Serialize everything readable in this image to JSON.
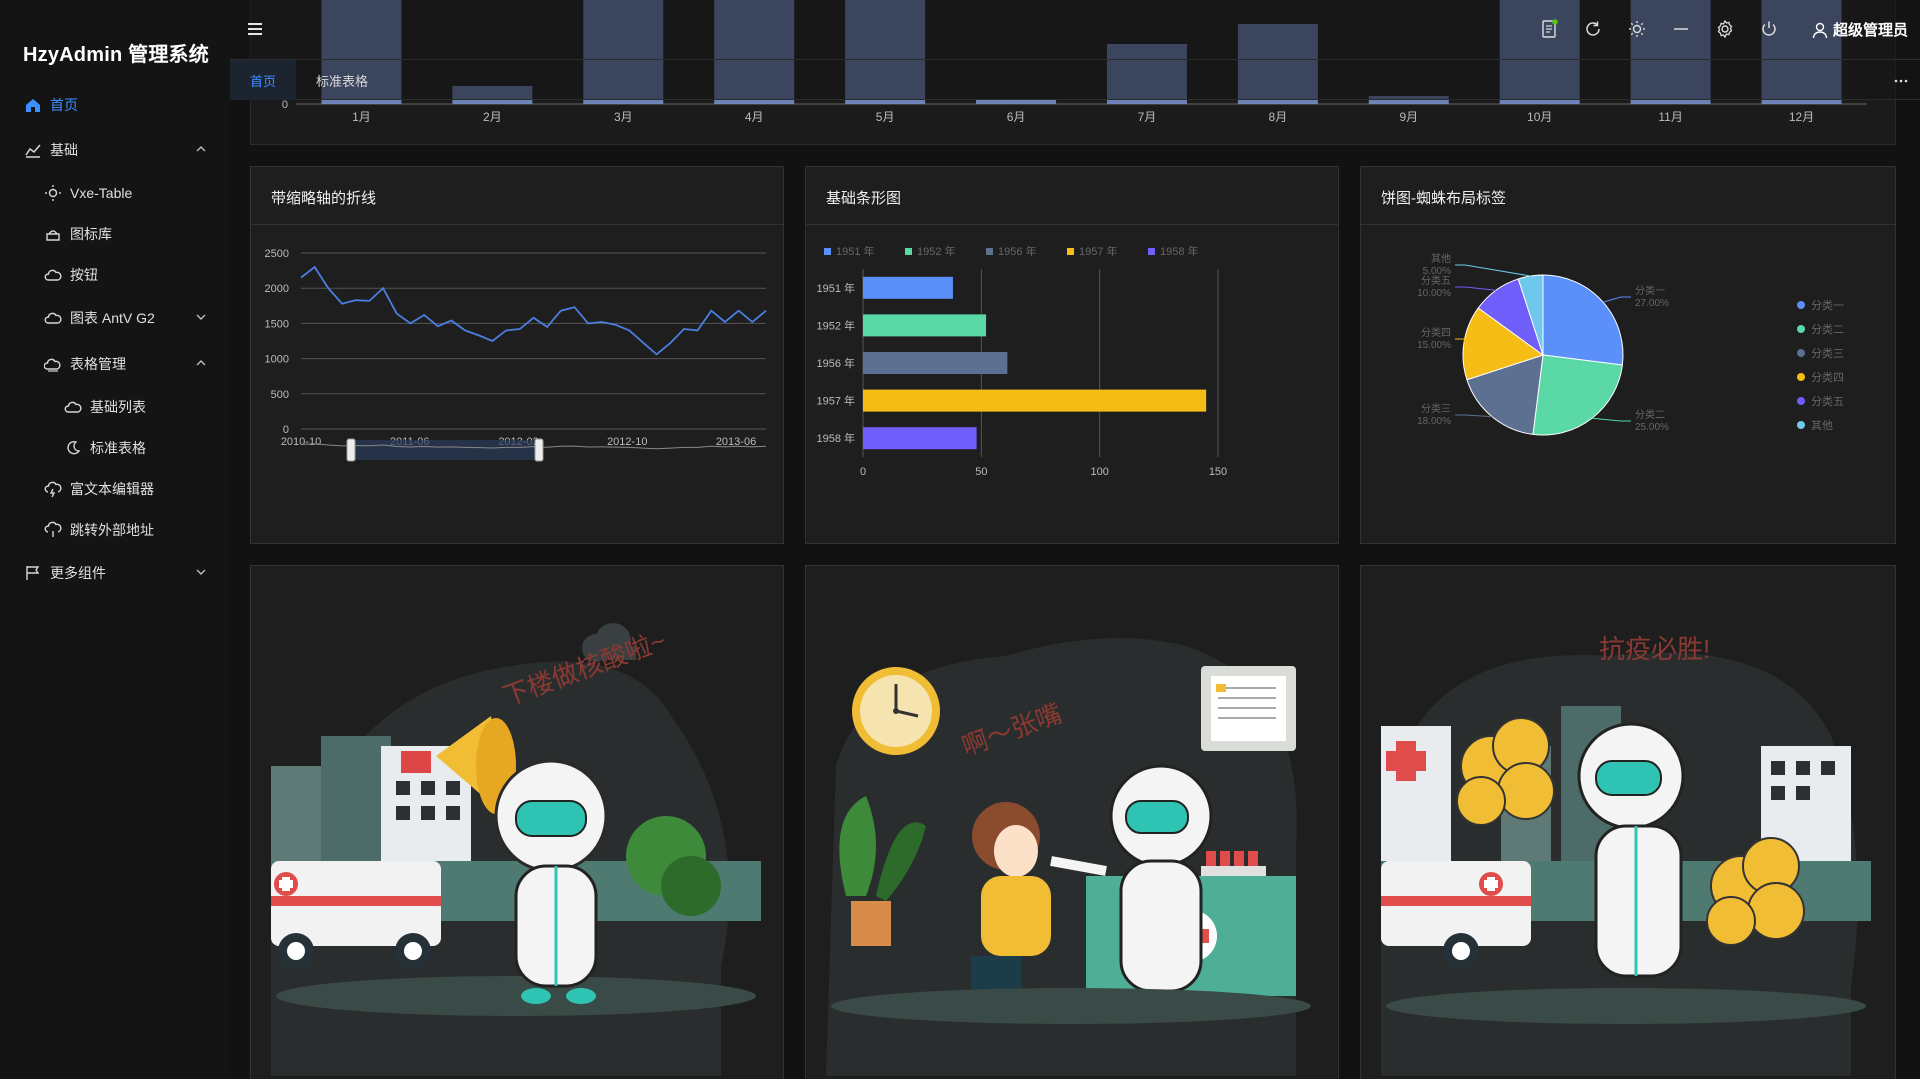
{
  "app": {
    "title": "HzyAdmin 管理系统"
  },
  "sidebar": {
    "items": [
      {
        "label": "首页",
        "icon": "home-icon",
        "active": true
      },
      {
        "label": "基础",
        "icon": "chart-line-icon",
        "expanded": true
      },
      {
        "label": "Vxe-Table",
        "icon": "sun-icon"
      },
      {
        "label": "图标库",
        "icon": "box-icon"
      },
      {
        "label": "按钮",
        "icon": "cloud-icon"
      },
      {
        "label": "图表 AntV G2",
        "icon": "cloud-icon",
        "expanded": false
      },
      {
        "label": "表格管理",
        "icon": "cloud-sun-icon",
        "expanded": true
      },
      {
        "label": "基础列表",
        "icon": "cloud-icon"
      },
      {
        "label": "标准表格",
        "icon": "moon-icon"
      },
      {
        "label": "富文本编辑器",
        "icon": "cloud-lightning-icon"
      },
      {
        "label": "跳转外部地址",
        "icon": "cloud-drizzle-icon"
      },
      {
        "label": "更多组件",
        "icon": "flag-icon",
        "expanded": false
      }
    ]
  },
  "header": {
    "user_name": "超级管理员",
    "icons": [
      "document-icon",
      "refresh-icon",
      "theme-sun-icon",
      "minimize-icon",
      "settings-icon",
      "power-icon",
      "user-icon"
    ]
  },
  "tabs": [
    {
      "label": "首页",
      "active": true
    },
    {
      "label": "标准表格",
      "active": false
    }
  ],
  "top_chart": {
    "chart_data": {
      "type": "bar",
      "categories": [
        "1月",
        "2月",
        "3月",
        "4月",
        "5月",
        "6月",
        "7月",
        "8月",
        "9月",
        "10月",
        "11月",
        "12月"
      ],
      "y_tick_visible": "0",
      "bar_color": "#7a93d0"
    }
  },
  "cards": {
    "line": {
      "title": "带缩略轴的折线",
      "chart_data": {
        "type": "line",
        "x_ticks": [
          "2010-10",
          "2011-06",
          "2012-02",
          "2012-10",
          "2013-06"
        ],
        "y_ticks": [
          "0",
          "500",
          "1000",
          "1500",
          "2000",
          "2500"
        ],
        "ylim": [
          0,
          2500
        ],
        "values": [
          2150,
          2300,
          2000,
          1780,
          1830,
          1820,
          2000,
          1640,
          1500,
          1620,
          1460,
          1540,
          1400,
          1330,
          1250,
          1400,
          1420,
          1580,
          1450,
          1680,
          1730,
          1500,
          1520,
          1480,
          1400,
          1230,
          1060,
          1220,
          1420,
          1400,
          1680,
          1520,
          1680,
          1520,
          1680
        ],
        "color": "#4a7fe0"
      }
    },
    "bar": {
      "title": "基础条形图",
      "chart_data": {
        "type": "bar",
        "orientation": "horizontal",
        "categories": [
          "1951 年",
          "1952 年",
          "1956 年",
          "1957 年",
          "1958 年"
        ],
        "values": [
          38,
          52,
          61,
          145,
          48
        ],
        "colors": [
          "#5b8ff9",
          "#5ad8a6",
          "#5d7092",
          "#f6bd16",
          "#6f5ef9"
        ],
        "x_ticks": [
          "0",
          "50",
          "100",
          "150"
        ],
        "xlim": [
          0,
          150
        ],
        "legend": [
          "1951 年",
          "1952 年",
          "1956 年",
          "1957 年",
          "1958 年"
        ]
      }
    },
    "pie": {
      "title": "饼图-蜘蛛布局标签",
      "chart_data": {
        "type": "pie",
        "slices": [
          {
            "name": "分类一",
            "value": 27,
            "label": "27.00%",
            "color": "#5b8ff9"
          },
          {
            "name": "分类二",
            "value": 25,
            "label": "25.00%",
            "color": "#5ad8a6"
          },
          {
            "name": "分类三",
            "value": 18,
            "label": "18.00%",
            "color": "#5d7092"
          },
          {
            "name": "分类四",
            "value": 15,
            "label": "15.00%",
            "color": "#f6bd16"
          },
          {
            "name": "分类五",
            "value": 10,
            "label": "10.00%",
            "color": "#6f5ef9"
          },
          {
            "name": "其他",
            "value": 5,
            "label": "5.00%",
            "color": "#6dc8ec"
          }
        ]
      }
    }
  },
  "illustrations": [
    {
      "caption": "下楼做核酸啦~"
    },
    {
      "caption": "啊～张嘴"
    },
    {
      "caption": "抗疫必胜!"
    }
  ]
}
